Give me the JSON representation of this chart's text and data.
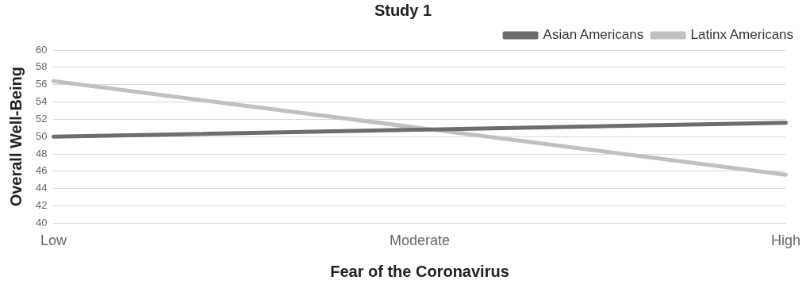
{
  "chart_data": {
    "type": "line",
    "title": "Study 1",
    "xlabel": "Fear of the Coronavirus",
    "ylabel": "Overall Well-Being",
    "categories": [
      "Low",
      "Moderate",
      "High"
    ],
    "series": [
      {
        "name": "Asian Americans",
        "color": "#6d6d6d",
        "values": [
          50.0,
          50.8,
          51.6
        ]
      },
      {
        "name": "Latinx Americans",
        "color": "#c0c0c0",
        "values": [
          56.4,
          51.0,
          45.6
        ]
      }
    ],
    "ylim": [
      40,
      60
    ],
    "yticks": [
      40,
      42,
      44,
      46,
      48,
      50,
      52,
      54,
      56,
      58,
      60
    ],
    "grid": "y",
    "legend": "top right",
    "marker": "none",
    "line_style": "solid"
  }
}
